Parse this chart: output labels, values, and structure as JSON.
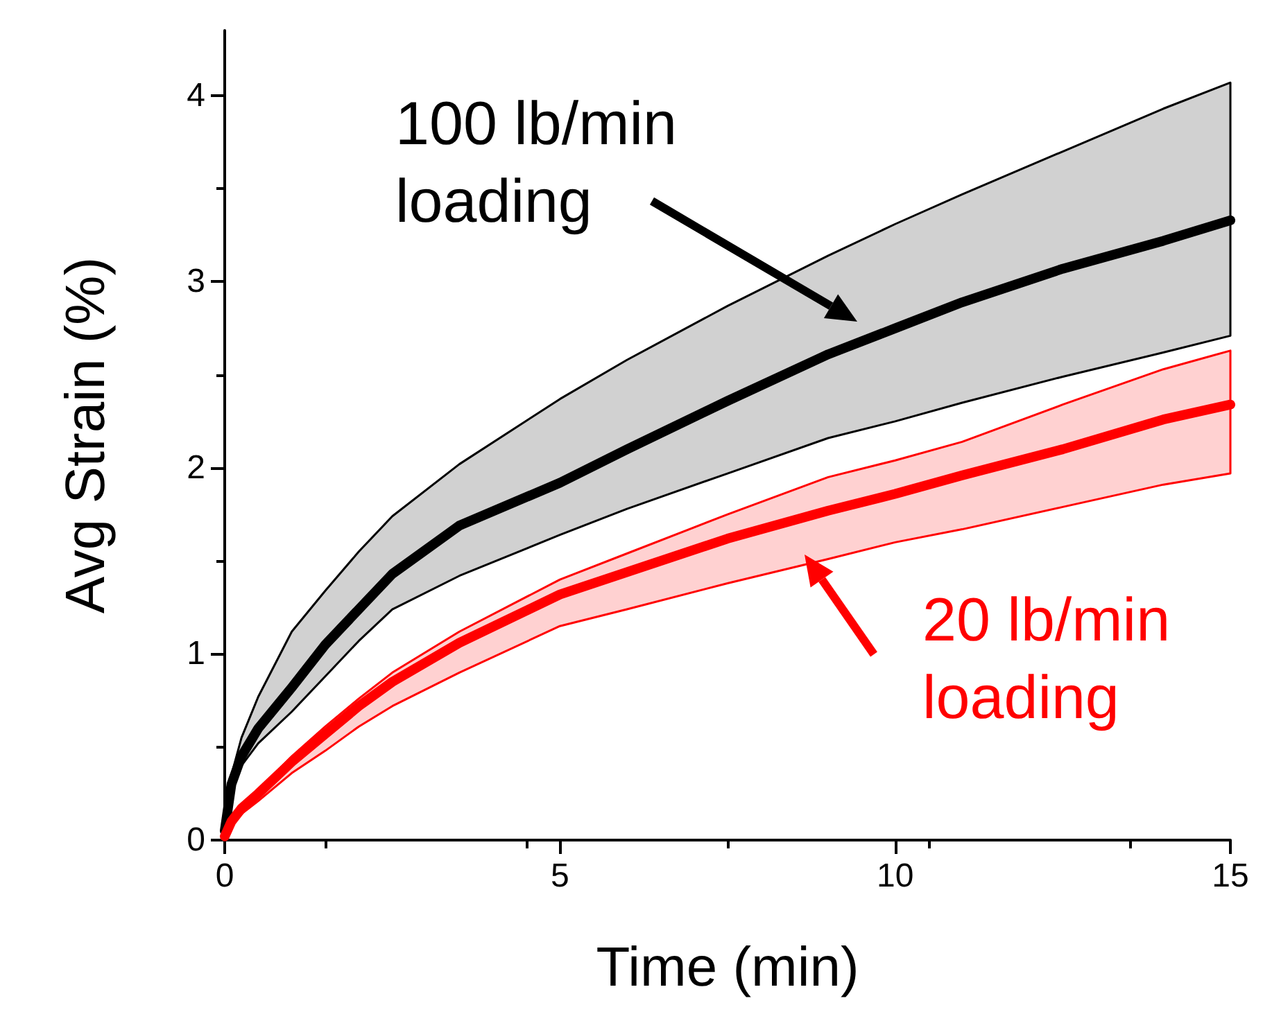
{
  "chart_data": {
    "type": "line",
    "xlabel": "Time (min)",
    "ylabel": "Avg Strain (%)",
    "xlim": [
      0,
      15
    ],
    "xticks": [
      0,
      5,
      10,
      15
    ],
    "ylim": [
      0,
      4.35
    ],
    "yticks": [
      0,
      1,
      2,
      3,
      4
    ],
    "grid": false,
    "marker": "none",
    "line_style": "solid",
    "x": [
      0,
      0.1,
      0.25,
      0.5,
      1,
      1.5,
      2,
      2.5,
      3.5,
      5,
      6,
      7.5,
      9,
      10,
      11,
      12.5,
      14,
      15
    ],
    "series": [
      {
        "color": "#000000",
        "values": [
          0.05,
          0.3,
          0.45,
          0.6,
          0.82,
          1.05,
          1.24,
          1.43,
          1.69,
          1.92,
          2.1,
          2.36,
          2.61,
          2.75,
          2.89,
          3.07,
          3.22,
          3.33
        ],
        "lower": [
          0.05,
          0.25,
          0.4,
          0.52,
          0.69,
          0.88,
          1.07,
          1.24,
          1.42,
          1.64,
          1.78,
          1.97,
          2.16,
          2.25,
          2.35,
          2.49,
          2.62,
          2.71
        ],
        "upper": [
          0.05,
          0.35,
          0.55,
          0.77,
          1.12,
          1.34,
          1.55,
          1.74,
          2.02,
          2.37,
          2.58,
          2.87,
          3.14,
          3.31,
          3.47,
          3.7,
          3.93,
          4.07
        ]
      },
      {
        "color": "#ff0000",
        "values": [
          0.02,
          0.1,
          0.17,
          0.25,
          0.42,
          0.57,
          0.72,
          0.85,
          1.06,
          1.32,
          1.44,
          1.62,
          1.77,
          1.86,
          1.96,
          2.1,
          2.26,
          2.34
        ],
        "lower": [
          0.02,
          0.08,
          0.14,
          0.21,
          0.36,
          0.48,
          0.61,
          0.72,
          0.9,
          1.15,
          1.24,
          1.38,
          1.51,
          1.6,
          1.67,
          1.79,
          1.91,
          1.97
        ],
        "upper": [
          0.02,
          0.11,
          0.18,
          0.27,
          0.45,
          0.61,
          0.76,
          0.9,
          1.12,
          1.4,
          1.54,
          1.75,
          1.95,
          2.04,
          2.14,
          2.34,
          2.53,
          2.63
        ]
      }
    ],
    "annotations": [
      "100 lb/min\nloading",
      "20 lb/min\nloading"
    ]
  }
}
